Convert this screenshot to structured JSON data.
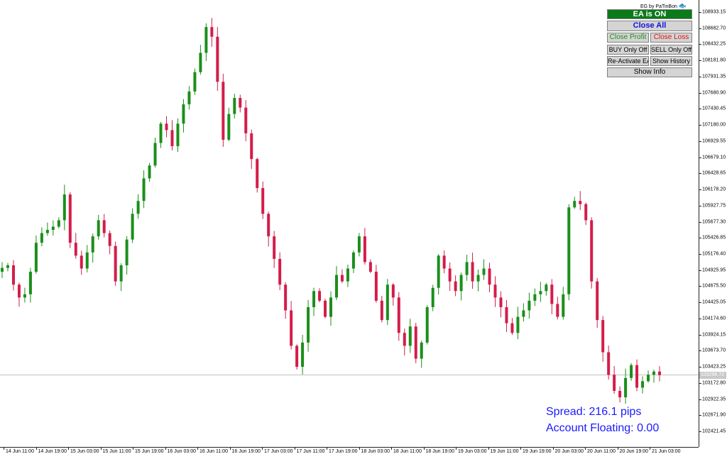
{
  "ea_credit": "EG by PaTinBon",
  "panel": {
    "ea_status": "EA is ON",
    "close_all": "Close All",
    "close_profit": "Close Profit",
    "close_loss": "Close Loss",
    "buy_only": "BUY Only Off",
    "sell_only": "SELL Only Off",
    "reactivate": "Re-Activate EA",
    "show_history": "Show History",
    "show_info": "Show Info"
  },
  "info": {
    "spread": "Spread: 216.1 pips",
    "floating": "Account Floating: 0.00"
  },
  "current_price": "103296.72",
  "colors": {
    "bull": "#1a8f1a",
    "bear": "#d41c4a",
    "accent_text": "#1a1aff"
  },
  "chart_data": {
    "type": "candlestick",
    "price_scale": [
      "108933.15",
      "108682.70",
      "108432.25",
      "108181.80",
      "107931.35",
      "107680.90",
      "107430.45",
      "107180.00",
      "106929.55",
      "106679.10",
      "106428.65",
      "106178.20",
      "105927.75",
      "105677.30",
      "105426.85",
      "105176.40",
      "104925.95",
      "104675.50",
      "104425.05",
      "104174.60",
      "103924.15",
      "103673.70",
      "103423.25",
      "103172.80",
      "102922.35",
      "102671.90",
      "102421.45"
    ],
    "time_labels": [
      "14 Jun 11:00",
      "14 Jun 19:00",
      "15 Jun 03:00",
      "15 Jun 11:00",
      "15 Jun 19:00",
      "16 Jun 03:00",
      "16 Jun 11:00",
      "16 Jun 19:00",
      "17 Jun 03:00",
      "17 Jun 11:00",
      "17 Jun 19:00",
      "18 Jun 03:00",
      "18 Jun 11:00",
      "18 Jun 19:00",
      "19 Jun 03:00",
      "19 Jun 11:00",
      "19 Jun 19:00",
      "20 Jun 03:00",
      "20 Jun 11:00",
      "20 Jun 19:00",
      "21 Jun 03:00"
    ],
    "y_range": [
      102300,
      109100
    ],
    "current_price": 103296.72,
    "close_path": [
      104960,
      105000,
      104700,
      104500,
      104550,
      104900,
      105350,
      105500,
      105550,
      105600,
      105700,
      106100,
      105350,
      105150,
      104950,
      105200,
      105450,
      105700,
      105500,
      105300,
      104750,
      105000,
      105400,
      105800,
      106000,
      106350,
      106550,
      106900,
      107200,
      107100,
      106850,
      107200,
      107500,
      107700,
      108000,
      108300,
      108700,
      108550,
      107850,
      106950,
      107350,
      107600,
      107450,
      107050,
      106650,
      106200,
      105800,
      105450,
      105100,
      104700,
      104300,
      103750,
      103423,
      103800,
      104350,
      104600,
      104450,
      104200,
      104500,
      104850,
      104750,
      104950,
      105200,
      105450,
      105050,
      104900,
      104450,
      104150,
      104700,
      104500,
      103950,
      103750,
      104050,
      103550,
      103800,
      104350,
      104650,
      105150,
      104950,
      104750,
      104600,
      104850,
      105050,
      104750,
      104850,
      104950,
      104700,
      104500,
      104350,
      104100,
      103950,
      104200,
      104300,
      104450,
      104550,
      104600,
      104700,
      104400,
      104200,
      104550,
      105900,
      106000,
      105950,
      105700,
      104750,
      104150,
      103650,
      103300,
      103050,
      102950,
      103250,
      103450,
      103100,
      103200,
      103300,
      103350,
      103296
    ]
  }
}
